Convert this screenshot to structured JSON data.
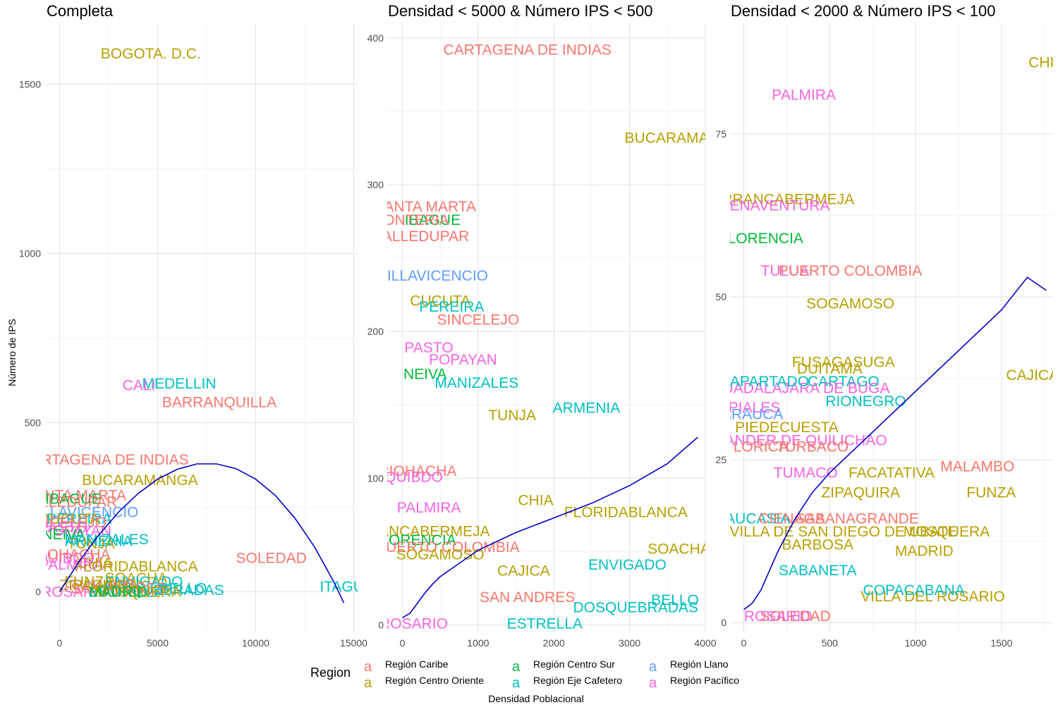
{
  "figure": {
    "x_axis_title": "Densidad Poblacional",
    "y_axis_title": "Número de IPS",
    "legend_title": "Region",
    "legend_key_glyph": "a"
  },
  "regions": [
    {
      "name": "Región Caribe",
      "color": "#F8766D"
    },
    {
      "name": "Región Centro Oriente",
      "color": "#B79F00"
    },
    {
      "name": "Región Centro Sur",
      "color": "#00BA38"
    },
    {
      "name": "Región Eje Cafetero",
      "color": "#00BFC4"
    },
    {
      "name": "Región Llano",
      "color": "#619CFF"
    },
    {
      "name": "Región Pacífico",
      "color": "#F564E3"
    }
  ],
  "chart_data": [
    {
      "type": "scatter",
      "title": "Completa",
      "xlim": [
        -700,
        15200
      ],
      "ylim": [
        -120,
        1680
      ],
      "x_ticks": [
        0,
        5000,
        10000,
        15000
      ],
      "x_tick_labels": [
        "0",
        "5000",
        "10000",
        "15000"
      ],
      "x_minor_ticks": [
        2500,
        7500,
        12500
      ],
      "y_ticks": [
        0,
        500,
        1000,
        1500
      ],
      "y_tick_labels": [
        "0",
        "500",
        "1000",
        "1500"
      ],
      "y_minor_ticks": [
        250,
        750,
        1250
      ],
      "grid": true,
      "trend_line": [
        [
          0,
          0
        ],
        [
          1000,
          90
        ],
        [
          2000,
          168
        ],
        [
          3000,
          235
        ],
        [
          4000,
          290
        ],
        [
          5000,
          333
        ],
        [
          6000,
          362
        ],
        [
          7000,
          378
        ],
        [
          8000,
          378
        ],
        [
          9000,
          364
        ],
        [
          10000,
          333
        ],
        [
          11000,
          285
        ],
        [
          12000,
          218
        ],
        [
          13000,
          133
        ],
        [
          14000,
          28
        ],
        [
          14500,
          -33
        ]
      ],
      "labels": [
        {
          "text": "BOGOTA. D.C.",
          "region": 1,
          "x": 4650,
          "y": 1590
        },
        {
          "text": "MEDELLIN",
          "region": 3,
          "x": 6100,
          "y": 615
        },
        {
          "text": "CALI",
          "region": 5,
          "x": 4050,
          "y": 610
        },
        {
          "text": "BARRANQUILLA",
          "region": 0,
          "x": 8150,
          "y": 560
        },
        {
          "text": "CARTAGENA DE INDIAS",
          "region": 0,
          "x": 2300,
          "y": 390
        },
        {
          "text": "BUCARAMANGA",
          "region": 1,
          "x": 4100,
          "y": 330
        },
        {
          "text": "SANTA MARTA",
          "region": 0,
          "x": 800,
          "y": 285
        },
        {
          "text": "IBAGUE",
          "region": 2,
          "x": 700,
          "y": 275
        },
        {
          "text": "VALLEDUPAR",
          "region": 0,
          "x": 500,
          "y": 265
        },
        {
          "text": "VILLAVICENCIO",
          "region": 4,
          "x": 1200,
          "y": 235
        },
        {
          "text": "PEREIRA",
          "region": 3,
          "x": 1000,
          "y": 215
        },
        {
          "text": "CUCUTA",
          "region": 1,
          "x": 500,
          "y": 215
        },
        {
          "text": "SINCELEJO",
          "region": 0,
          "x": 300,
          "y": 205
        },
        {
          "text": "PASTO",
          "region": 5,
          "x": 200,
          "y": 190
        },
        {
          "text": "POPAYAN",
          "region": 5,
          "x": 900,
          "y": 180
        },
        {
          "text": "NEIVA",
          "region": 2,
          "x": 200,
          "y": 170
        },
        {
          "text": "MANIZALES",
          "region": 3,
          "x": 2400,
          "y": 155
        },
        {
          "text": "TUNJA",
          "region": 1,
          "x": 1600,
          "y": 142
        },
        {
          "text": "ARMENIA",
          "region": 3,
          "x": 2000,
          "y": 150
        },
        {
          "text": "FLORIDABLANCA",
          "region": 1,
          "x": 3900,
          "y": 75
        },
        {
          "text": "SOLEDAD",
          "region": 0,
          "x": 10800,
          "y": 100
        },
        {
          "text": "ITAGUI",
          "region": 3,
          "x": 14500,
          "y": 15
        },
        {
          "text": "BELLO",
          "region": 3,
          "x": 6300,
          "y": 10
        },
        {
          "text": "SOACHA",
          "region": 1,
          "x": 3900,
          "y": 40
        },
        {
          "text": "ROSARIO",
          "region": 5,
          "x": 800,
          "y": 0
        },
        {
          "text": "TUMACO",
          "region": 5,
          "x": 2200,
          "y": 20
        },
        {
          "text": "ENVIGADO",
          "region": 3,
          "x": 4300,
          "y": 30
        },
        {
          "text": "DOSQUEBRADAS",
          "region": 3,
          "x": 5200,
          "y": 5
        },
        {
          "text": "ESTRELLA",
          "region": 3,
          "x": 3400,
          "y": 0
        },
        {
          "text": "PALMIRA",
          "region": 5,
          "x": 600,
          "y": 80
        },
        {
          "text": "SAN ANDRES",
          "region": 0,
          "x": 3000,
          "y": 10
        },
        {
          "text": "CHIA",
          "region": 1,
          "x": 1800,
          "y": 85
        },
        {
          "text": "ZIPAQUIRA",
          "region": 1,
          "x": 2000,
          "y": 20
        },
        {
          "text": "MOSQUERA",
          "region": 1,
          "x": 4000,
          "y": 0
        },
        {
          "text": "FUNZA",
          "region": 1,
          "x": 1500,
          "y": 30
        },
        {
          "text": "MADRID",
          "region": 2,
          "x": 3000,
          "y": 0
        },
        {
          "text": "QUIBDO",
          "region": 5,
          "x": 300,
          "y": 100
        },
        {
          "text": "RIOHACHA",
          "region": 0,
          "x": 600,
          "y": 110
        }
      ]
    },
    {
      "type": "scatter",
      "title": "Densidad < 5000 & Número IPS < 500",
      "xlim": [
        -200,
        4000
      ],
      "ylim": [
        -5,
        410
      ],
      "x_ticks": [
        0,
        1000,
        2000,
        3000,
        4000
      ],
      "x_tick_labels": [
        "0",
        "1000",
        "2000",
        "3000",
        "4000"
      ],
      "x_minor_ticks": [
        500,
        1500,
        2500,
        3500
      ],
      "y_ticks": [
        0,
        100,
        200,
        300,
        400
      ],
      "y_tick_labels": [
        "0",
        "100",
        "200",
        "300",
        "400"
      ],
      "y_minor_ticks": [
        50,
        150,
        250,
        350
      ],
      "grid": true,
      "trend_line": [
        [
          0,
          5
        ],
        [
          100,
          8
        ],
        [
          200,
          15
        ],
        [
          300,
          22
        ],
        [
          400,
          28
        ],
        [
          500,
          33
        ],
        [
          750,
          42
        ],
        [
          1000,
          51
        ],
        [
          1500,
          63
        ],
        [
          2000,
          73
        ],
        [
          2500,
          83
        ],
        [
          3000,
          95
        ],
        [
          3500,
          110
        ],
        [
          3900,
          128
        ]
      ],
      "labels": [
        {
          "text": "CARTAGENA DE INDIAS",
          "region": 0,
          "x": 1650,
          "y": 392
        },
        {
          "text": "BUCARAMANGA",
          "region": 1,
          "x": 3700,
          "y": 332
        },
        {
          "text": "SANTA MARTA",
          "region": 0,
          "x": 300,
          "y": 285
        },
        {
          "text": "IBAGUE",
          "region": 2,
          "x": 400,
          "y": 276
        },
        {
          "text": "MONTERIA",
          "region": 0,
          "x": 100,
          "y": 276
        },
        {
          "text": "VALLEDUPAR",
          "region": 0,
          "x": 250,
          "y": 265
        },
        {
          "text": "VILLAVICENCIO",
          "region": 4,
          "x": 400,
          "y": 238
        },
        {
          "text": "CUCUTA",
          "region": 1,
          "x": 500,
          "y": 221
        },
        {
          "text": "PEREIRA",
          "region": 3,
          "x": 650,
          "y": 217
        },
        {
          "text": "SINCELEJO",
          "region": 0,
          "x": 1000,
          "y": 208
        },
        {
          "text": "PASTO",
          "region": 5,
          "x": 350,
          "y": 189
        },
        {
          "text": "POPAYAN",
          "region": 5,
          "x": 800,
          "y": 181
        },
        {
          "text": "NEIVA",
          "region": 2,
          "x": 300,
          "y": 171
        },
        {
          "text": "MANIZALES",
          "region": 3,
          "x": 980,
          "y": 165
        },
        {
          "text": "ARMENIA",
          "region": 3,
          "x": 2430,
          "y": 148
        },
        {
          "text": "TUNJA",
          "region": 1,
          "x": 1450,
          "y": 143
        },
        {
          "text": "RIOHACHA",
          "region": 0,
          "x": 200,
          "y": 105
        },
        {
          "text": "QUIBDO",
          "region": 5,
          "x": 150,
          "y": 101
        },
        {
          "text": "CHIA",
          "region": 1,
          "x": 1760,
          "y": 85
        },
        {
          "text": "PALMIRA",
          "region": 5,
          "x": 350,
          "y": 80
        },
        {
          "text": "FLORIDABLANCA",
          "region": 1,
          "x": 2950,
          "y": 77
        },
        {
          "text": "BARRANCABERMEJA",
          "region": 1,
          "x": 150,
          "y": 64
        },
        {
          "text": "FLORENCIA",
          "region": 2,
          "x": 150,
          "y": 58
        },
        {
          "text": "PUERTO COLOMBIA",
          "region": 0,
          "x": 600,
          "y": 53
        },
        {
          "text": "SOACHA",
          "region": 1,
          "x": 3650,
          "y": 52
        },
        {
          "text": "SOGAMOSO",
          "region": 1,
          "x": 500,
          "y": 48
        },
        {
          "text": "ENVIGADO",
          "region": 3,
          "x": 2970,
          "y": 41
        },
        {
          "text": "CAJICA",
          "region": 1,
          "x": 1600,
          "y": 37
        },
        {
          "text": "SAN ANDRES",
          "region": 0,
          "x": 1650,
          "y": 19
        },
        {
          "text": "BELLO",
          "region": 3,
          "x": 3600,
          "y": 17
        },
        {
          "text": "DOSQUEBRADAS",
          "region": 3,
          "x": 3080,
          "y": 12
        },
        {
          "text": "ESTRELLA",
          "region": 3,
          "x": 1880,
          "y": 1
        },
        {
          "text": "ROSARIO",
          "region": 5,
          "x": 150,
          "y": 1
        }
      ]
    },
    {
      "type": "scatter",
      "title": "Densidad < 2000 & Número IPS < 100",
      "xlim": [
        -80,
        1800
      ],
      "ylim": [
        -1.5,
        92
      ],
      "x_ticks": [
        0,
        500,
        1000,
        1500
      ],
      "x_tick_labels": [
        "0",
        "500",
        "1000",
        "1500"
      ],
      "x_minor_ticks": [
        250,
        750,
        1250,
        1750
      ],
      "y_ticks": [
        0,
        25,
        50,
        75
      ],
      "y_tick_labels": [
        "0",
        "25",
        "50",
        "75"
      ],
      "y_minor_ticks": [
        12.5,
        37.5,
        62.5
      ],
      "grid": true,
      "trend_line": [
        [
          0,
          2
        ],
        [
          50,
          3
        ],
        [
          100,
          5
        ],
        [
          150,
          8
        ],
        [
          200,
          11
        ],
        [
          300,
          16
        ],
        [
          400,
          20
        ],
        [
          500,
          23
        ],
        [
          700,
          28
        ],
        [
          900,
          33
        ],
        [
          1100,
          38
        ],
        [
          1300,
          43
        ],
        [
          1500,
          48
        ],
        [
          1650,
          53
        ],
        [
          1760,
          51
        ]
      ],
      "labels": [
        {
          "text": "CHIA",
          "region": 1,
          "x": 1760,
          "y": 86
        },
        {
          "text": "PALMIRA",
          "region": 5,
          "x": 350,
          "y": 81
        },
        {
          "text": "BARRANCABERMEJA",
          "region": 1,
          "x": 200,
          "y": 65
        },
        {
          "text": "BUENAVENTURA",
          "region": 5,
          "x": 150,
          "y": 64
        },
        {
          "text": "FLORENCIA",
          "region": 2,
          "x": 100,
          "y": 59
        },
        {
          "text": "TULUA",
          "region": 5,
          "x": 240,
          "y": 54
        },
        {
          "text": "PUERTO COLOMBIA",
          "region": 0,
          "x": 620,
          "y": 54
        },
        {
          "text": "SOGAMOSO",
          "region": 1,
          "x": 620,
          "y": 49
        },
        {
          "text": "CAJICA",
          "region": 1,
          "x": 1680,
          "y": 38
        },
        {
          "text": "RIONEGRO",
          "region": 3,
          "x": 710,
          "y": 34
        },
        {
          "text": "CARTAGO",
          "region": 3,
          "x": 580,
          "y": 37
        },
        {
          "text": "FUSAGASUGA",
          "region": 1,
          "x": 580,
          "y": 40
        },
        {
          "text": "DUITAMA",
          "region": 1,
          "x": 500,
          "y": 39
        },
        {
          "text": "GUADALAJARA DE BUGA",
          "region": 5,
          "x": 330,
          "y": 36
        },
        {
          "text": "APARTADO",
          "region": 3,
          "x": 150,
          "y": 37
        },
        {
          "text": "IPIALES",
          "region": 5,
          "x": 50,
          "y": 33
        },
        {
          "text": "ARAUCA",
          "region": 4,
          "x": 50,
          "y": 32
        },
        {
          "text": "PIEDECUESTA",
          "region": 1,
          "x": 250,
          "y": 30
        },
        {
          "text": "SANTANDER DE QUILICHAO",
          "region": 5,
          "x": 250,
          "y": 28
        },
        {
          "text": "LORICA",
          "region": 0,
          "x": 100,
          "y": 27
        },
        {
          "text": "TURBACO",
          "region": 0,
          "x": 400,
          "y": 27
        },
        {
          "text": "MALAMBO",
          "region": 0,
          "x": 1360,
          "y": 24
        },
        {
          "text": "FACATATIVA",
          "region": 1,
          "x": 860,
          "y": 23
        },
        {
          "text": "TUMACO",
          "region": 5,
          "x": 360,
          "y": 23
        },
        {
          "text": "ZIPAQUIRA",
          "region": 1,
          "x": 680,
          "y": 20
        },
        {
          "text": "FUNZA",
          "region": 1,
          "x": 1440,
          "y": 20
        },
        {
          "text": "CAUCASIA",
          "region": 3,
          "x": 50,
          "y": 16
        },
        {
          "text": "CIENAGA",
          "region": 0,
          "x": 280,
          "y": 16
        },
        {
          "text": "SABANAGRANDE",
          "region": 0,
          "x": 660,
          "y": 16
        },
        {
          "text": "MOSQUERA",
          "region": 1,
          "x": 1180,
          "y": 14
        },
        {
          "text": "VILLA DE SAN DIEGO DE UBATE",
          "region": 1,
          "x": 580,
          "y": 14
        },
        {
          "text": "BARBOSA",
          "region": 1,
          "x": 430,
          "y": 12
        },
        {
          "text": "MADRID",
          "region": 1,
          "x": 1050,
          "y": 11
        },
        {
          "text": "SABANETA",
          "region": 3,
          "x": 430,
          "y": 8
        },
        {
          "text": "VILLA DEL ROSARIO",
          "region": 1,
          "x": 1100,
          "y": 4
        },
        {
          "text": "COPACABANA",
          "region": 3,
          "x": 990,
          "y": 5
        },
        {
          "text": "SOLEDAD",
          "region": 0,
          "x": 300,
          "y": 1
        },
        {
          "text": "ROSARIO",
          "region": 5,
          "x": 200,
          "y": 1
        }
      ]
    }
  ]
}
